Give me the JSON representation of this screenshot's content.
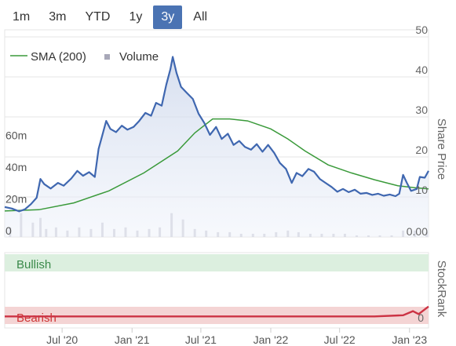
{
  "range_selector": {
    "buttons": [
      "1m",
      "3m",
      "YTD",
      "1y",
      "3y",
      "All"
    ],
    "active": "3y",
    "active_color": "#4a73b3"
  },
  "chart_data": [
    {
      "type": "line",
      "title": "",
      "xlabel": "",
      "ylabel": "Share Price",
      "x_range": [
        "2020-02-01",
        "2023-02-20"
      ],
      "ylim": [
        0,
        50
      ],
      "y_ticks": [
        10,
        20,
        30,
        40,
        50
      ],
      "y_tick_labels": [
        "10",
        "20",
        "30",
        "40",
        "50"
      ],
      "x_ticks": [
        {
          "date": "2020-07-01",
          "label": "Jul '20"
        },
        {
          "date": "2021-01-01",
          "label": "Jan '21"
        },
        {
          "date": "2021-07-01",
          "label": "Jul '21"
        },
        {
          "date": "2022-01-01",
          "label": "Jan '22"
        },
        {
          "date": "2022-07-01",
          "label": "Jul '22"
        },
        {
          "date": "2023-01-01",
          "label": "Jan '23"
        }
      ],
      "legend": {
        "placement": "top-left",
        "items": [
          "SMA (200)",
          "Volume"
        ]
      },
      "series": [
        {
          "name": "",
          "color": "#3f67b0",
          "points": [
            [
              "2020-02-01",
              7.5
            ],
            [
              "2020-02-20",
              7.1
            ],
            [
              "2020-03-10",
              6.4
            ],
            [
              "2020-03-25",
              6.9
            ],
            [
              "2020-04-10",
              8.2
            ],
            [
              "2020-04-25",
              9.8
            ],
            [
              "2020-05-05",
              14.5
            ],
            [
              "2020-05-15",
              13.2
            ],
            [
              "2020-06-01",
              12.1
            ],
            [
              "2020-06-20",
              13.5
            ],
            [
              "2020-07-05",
              12.8
            ],
            [
              "2020-07-25",
              14.6
            ],
            [
              "2020-08-10",
              16.5
            ],
            [
              "2020-08-25",
              15.3
            ],
            [
              "2020-09-10",
              16.2
            ],
            [
              "2020-09-25",
              15.0
            ],
            [
              "2020-10-05",
              22.0
            ],
            [
              "2020-10-15",
              25.5
            ],
            [
              "2020-10-25",
              29.0
            ],
            [
              "2020-11-05",
              27.0
            ],
            [
              "2020-11-20",
              26.2
            ],
            [
              "2020-12-05",
              27.8
            ],
            [
              "2020-12-20",
              26.8
            ],
            [
              "2021-01-05",
              27.5
            ],
            [
              "2021-01-20",
              29.0
            ],
            [
              "2021-02-05",
              31.0
            ],
            [
              "2021-02-20",
              30.3
            ],
            [
              "2021-03-05",
              33.5
            ],
            [
              "2021-03-20",
              32.8
            ],
            [
              "2021-04-01",
              38.0
            ],
            [
              "2021-04-12",
              42.0
            ],
            [
              "2021-04-18",
              45.0
            ],
            [
              "2021-04-28",
              41.0
            ],
            [
              "2021-05-10",
              37.5
            ],
            [
              "2021-05-25",
              36.0
            ],
            [
              "2021-06-10",
              34.5
            ],
            [
              "2021-06-25",
              30.8
            ],
            [
              "2021-07-10",
              28.5
            ],
            [
              "2021-07-25",
              25.5
            ],
            [
              "2021-08-10",
              27.5
            ],
            [
              "2021-08-25",
              24.5
            ],
            [
              "2021-09-10",
              25.8
            ],
            [
              "2021-09-25",
              23.0
            ],
            [
              "2021-10-10",
              24.0
            ],
            [
              "2021-10-25",
              22.5
            ],
            [
              "2021-11-10",
              21.8
            ],
            [
              "2021-11-25",
              23.2
            ],
            [
              "2021-12-10",
              21.3
            ],
            [
              "2021-12-25",
              23.0
            ],
            [
              "2022-01-10",
              21.0
            ],
            [
              "2022-01-25",
              18.5
            ],
            [
              "2022-02-10",
              17.0
            ],
            [
              "2022-02-25",
              13.5
            ],
            [
              "2022-03-10",
              16.0
            ],
            [
              "2022-03-25",
              15.2
            ],
            [
              "2022-04-10",
              17.0
            ],
            [
              "2022-04-25",
              16.3
            ],
            [
              "2022-05-10",
              14.5
            ],
            [
              "2022-05-25",
              13.5
            ],
            [
              "2022-06-10",
              12.5
            ],
            [
              "2022-06-25",
              11.3
            ],
            [
              "2022-07-10",
              12.0
            ],
            [
              "2022-07-25",
              11.2
            ],
            [
              "2022-08-10",
              11.8
            ],
            [
              "2022-08-25",
              10.8
            ],
            [
              "2022-09-10",
              11.0
            ],
            [
              "2022-09-25",
              10.5
            ],
            [
              "2022-10-10",
              10.8
            ],
            [
              "2022-10-25",
              10.3
            ],
            [
              "2022-11-10",
              10.6
            ],
            [
              "2022-11-25",
              10.2
            ],
            [
              "2022-12-05",
              10.8
            ],
            [
              "2022-12-15",
              15.5
            ],
            [
              "2022-12-25",
              13.5
            ],
            [
              "2023-01-05",
              11.5
            ],
            [
              "2023-01-20",
              12.0
            ],
            [
              "2023-01-28",
              15.0
            ],
            [
              "2023-02-10",
              14.8
            ],
            [
              "2023-02-20",
              16.5
            ]
          ]
        },
        {
          "name": "SMA (200)",
          "color": "#3a9a3a",
          "points": [
            [
              "2020-02-01",
              6.5
            ],
            [
              "2020-05-01",
              6.8
            ],
            [
              "2020-08-01",
              8.5
            ],
            [
              "2020-11-01",
              11.5
            ],
            [
              "2021-02-01",
              16.0
            ],
            [
              "2021-05-01",
              21.5
            ],
            [
              "2021-06-15",
              26.0
            ],
            [
              "2021-08-01",
              29.5
            ],
            [
              "2021-09-15",
              29.5
            ],
            [
              "2021-11-01",
              29.0
            ],
            [
              "2022-01-01",
              27.0
            ],
            [
              "2022-02-15",
              24.5
            ],
            [
              "2022-04-01",
              21.5
            ],
            [
              "2022-06-01",
              18.0
            ],
            [
              "2022-08-01",
              16.0
            ],
            [
              "2022-10-01",
              14.3
            ],
            [
              "2022-12-01",
              12.8
            ],
            [
              "2023-01-15",
              12.3
            ],
            [
              "2023-02-20",
              12.0
            ]
          ]
        }
      ],
      "volume": {
        "name": "Volume",
        "axis_tick_labels": [
          "0",
          "20m",
          "40m",
          "60m"
        ],
        "ylim": [
          0,
          80
        ],
        "color": "#a8a8b8",
        "points": [
          [
            "2020-02-15",
            6
          ],
          [
            "2020-03-15",
            15
          ],
          [
            "2020-04-15",
            9
          ],
          [
            "2020-05-05",
            12
          ],
          [
            "2020-05-20",
            5
          ],
          [
            "2020-06-15",
            6
          ],
          [
            "2020-07-15",
            4
          ],
          [
            "2020-08-15",
            6
          ],
          [
            "2020-09-15",
            5
          ],
          [
            "2020-10-15",
            9
          ],
          [
            "2020-11-15",
            5
          ],
          [
            "2020-12-15",
            6
          ],
          [
            "2021-01-15",
            4
          ],
          [
            "2021-02-15",
            5
          ],
          [
            "2021-03-15",
            6
          ],
          [
            "2021-04-15",
            15
          ],
          [
            "2021-05-15",
            11
          ],
          [
            "2021-06-15",
            5
          ],
          [
            "2021-07-15",
            4
          ],
          [
            "2021-08-15",
            3
          ],
          [
            "2021-09-15",
            3
          ],
          [
            "2021-10-15",
            2
          ],
          [
            "2021-11-15",
            2
          ],
          [
            "2021-12-15",
            2
          ],
          [
            "2022-01-15",
            3
          ],
          [
            "2022-02-15",
            4
          ],
          [
            "2022-03-15",
            3
          ],
          [
            "2022-04-15",
            2
          ],
          [
            "2022-05-15",
            2
          ],
          [
            "2022-06-15",
            2
          ],
          [
            "2022-07-15",
            2
          ],
          [
            "2022-08-15",
            1
          ],
          [
            "2022-09-15",
            1
          ],
          [
            "2022-10-15",
            1
          ],
          [
            "2022-11-15",
            1
          ],
          [
            "2022-12-15",
            4
          ],
          [
            "2023-01-15",
            4
          ],
          [
            "2023-02-15",
            3
          ]
        ]
      },
      "last_value_label": "0.00"
    },
    {
      "type": "line",
      "title": "",
      "ylabel": "StockRank",
      "bands": [
        {
          "label": "Bullish",
          "color": "#dcefdf",
          "text_color": "#3a8a4a"
        },
        {
          "label": "Bearish",
          "color": "#f4d4d4",
          "text_color": "#cc3333"
        }
      ],
      "y_tick_labels": [
        "0"
      ],
      "series": [
        {
          "name": "",
          "color": "#cc3344",
          "values": [
            [
              "2020-02-01",
              1
            ],
            [
              "2022-10-01",
              1
            ],
            [
              "2022-12-15",
              3
            ],
            [
              "2023-01-10",
              10
            ],
            [
              "2023-01-25",
              5
            ],
            [
              "2023-02-20",
              18
            ]
          ]
        }
      ]
    }
  ]
}
